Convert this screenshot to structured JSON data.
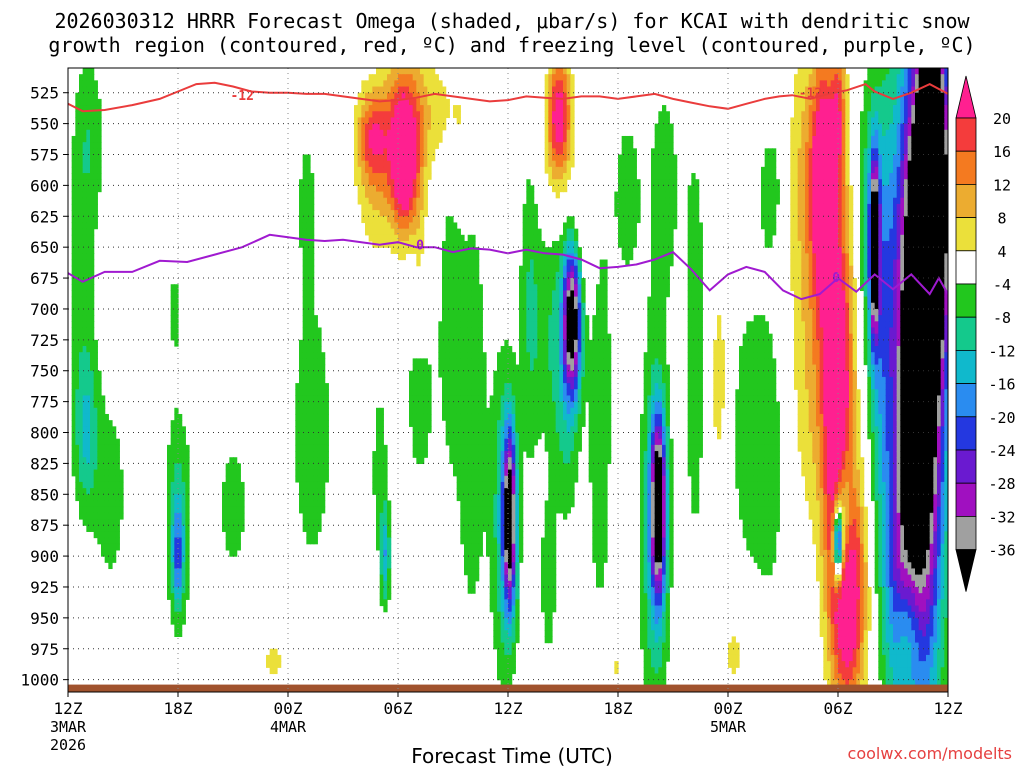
{
  "title_line1": "2026030312 HRRR Forecast Omega (shaded, μbar/s) for KCAI with dendritic snow",
  "title_line2": "growth region (contoured, red, ºC) and freezing level (contoured, purple, ºC)",
  "credit": "coolwx.com/modelts",
  "chart_data": {
    "type": "heatmap",
    "title": "2026030312 HRRR Forecast Omega (shaded, μbar/s) for KCAI with dendritic snow growth region (contoured, red, ºC) and freezing level (contoured, purple, ºC)",
    "xlabel": "Forecast Time (UTC)",
    "ylabel": "",
    "x_range_hours": [
      0,
      48
    ],
    "y_range_mb": [
      505,
      1010
    ],
    "y_scale": "linear, inverted",
    "grid": true,
    "x_ticks": [
      {
        "hour": 0,
        "label": "12Z",
        "sub1": "3MAR",
        "sub2": "2026"
      },
      {
        "hour": 6,
        "label": "18Z",
        "sub1": "",
        "sub2": ""
      },
      {
        "hour": 12,
        "label": "00Z",
        "sub1": "4MAR",
        "sub2": ""
      },
      {
        "hour": 18,
        "label": "06Z",
        "sub1": "",
        "sub2": ""
      },
      {
        "hour": 24,
        "label": "12Z",
        "sub1": "",
        "sub2": ""
      },
      {
        "hour": 30,
        "label": "18Z",
        "sub1": "",
        "sub2": ""
      },
      {
        "hour": 36,
        "label": "00Z",
        "sub1": "5MAR",
        "sub2": ""
      },
      {
        "hour": 42,
        "label": "06Z",
        "sub1": "",
        "sub2": ""
      },
      {
        "hour": 48,
        "label": "12Z",
        "sub1": "",
        "sub2": ""
      }
    ],
    "y_ticks": [
      525,
      550,
      575,
      600,
      625,
      650,
      675,
      700,
      725,
      750,
      775,
      800,
      825,
      850,
      875,
      900,
      925,
      950,
      975,
      1000
    ],
    "colorbar": {
      "labels": [
        "20",
        "16",
        "12",
        "8",
        "4",
        "-4",
        "-8",
        "-12",
        "-16",
        "-20",
        "-24",
        "-28",
        "-32",
        "-36"
      ],
      "bins": [
        {
          "lo": 20,
          "hi": 999,
          "color": "#ff2090"
        },
        {
          "lo": 16,
          "hi": 20,
          "color": "#f43c3c"
        },
        {
          "lo": 12,
          "hi": 16,
          "color": "#f47a20"
        },
        {
          "lo": 8,
          "hi": 12,
          "color": "#ecac30"
        },
        {
          "lo": 4,
          "hi": 8,
          "color": "#ebe03a"
        },
        {
          "lo": -4,
          "hi": 4,
          "color": "#ffffff"
        },
        {
          "lo": -8,
          "hi": -4,
          "color": "#22c71e"
        },
        {
          "lo": -12,
          "hi": -8,
          "color": "#14c98c"
        },
        {
          "lo": -16,
          "hi": -12,
          "color": "#10b9cc"
        },
        {
          "lo": -20,
          "hi": -16,
          "color": "#2a8cf0"
        },
        {
          "lo": -24,
          "hi": -20,
          "color": "#2438e0"
        },
        {
          "lo": -28,
          "hi": -24,
          "color": "#6a1ad0"
        },
        {
          "lo": -32,
          "hi": -28,
          "color": "#a010c0"
        },
        {
          "lo": -36,
          "hi": -32,
          "color": "#a0a0a0"
        },
        {
          "lo": -999,
          "hi": -36,
          "color": "#000000"
        }
      ]
    },
    "omega_features": [
      {
        "t": 0.7,
        "p": 690,
        "ht": 0.9,
        "hp": 150,
        "v": -6
      },
      {
        "t": 1.2,
        "p": 560,
        "ht": 0.8,
        "hp": 70,
        "v": -6
      },
      {
        "t": 1.0,
        "p": 800,
        "ht": 0.6,
        "hp": 60,
        "v": -10
      },
      {
        "t": 2.3,
        "p": 850,
        "ht": 1.0,
        "hp": 90,
        "v": -6
      },
      {
        "t": 6.0,
        "p": 870,
        "ht": 0.7,
        "hp": 90,
        "v": -10
      },
      {
        "t": 6.0,
        "p": 900,
        "ht": 0.3,
        "hp": 40,
        "v": -14
      },
      {
        "t": 5.8,
        "p": 700,
        "ht": 0.3,
        "hp": 50,
        "v": -5
      },
      {
        "t": 9.0,
        "p": 860,
        "ht": 0.9,
        "hp": 60,
        "v": -6
      },
      {
        "t": 11.2,
        "p": 985,
        "ht": 0.6,
        "hp": 18,
        "v": 6
      },
      {
        "t": 12.0,
        "p": 920,
        "ht": 0.2,
        "hp": 30,
        "v": 5
      },
      {
        "t": 13.3,
        "p": 800,
        "ht": 1.2,
        "hp": 120,
        "v": -7
      },
      {
        "t": 13.0,
        "p": 610,
        "ht": 0.6,
        "hp": 70,
        "v": -5
      },
      {
        "t": 16.8,
        "p": 590,
        "ht": 1.1,
        "hp": 70,
        "v": 8
      },
      {
        "t": 16.6,
        "p": 560,
        "ht": 0.8,
        "hp": 35,
        "v": 14
      },
      {
        "t": 18.2,
        "p": 565,
        "ht": 0.9,
        "hp": 60,
        "v": 20
      },
      {
        "t": 18.4,
        "p": 590,
        "ht": 0.6,
        "hp": 50,
        "v": 15
      },
      {
        "t": 17.0,
        "p": 830,
        "ht": 0.5,
        "hp": 80,
        "v": -6
      },
      {
        "t": 17.3,
        "p": 900,
        "ht": 0.25,
        "hp": 40,
        "v": -14
      },
      {
        "t": 19.4,
        "p": 540,
        "ht": 1.3,
        "hp": 50,
        "v": 7
      },
      {
        "t": 19.2,
        "p": 640,
        "ht": 0.4,
        "hp": 90,
        "v": 5
      },
      {
        "t": 20.8,
        "p": 700,
        "ht": 0.6,
        "hp": 130,
        "v": -6
      },
      {
        "t": 19.2,
        "p": 770,
        "ht": 0.9,
        "hp": 90,
        "v": -6
      },
      {
        "t": 21.4,
        "p": 550,
        "ht": 1.0,
        "hp": 60,
        "v": 5
      },
      {
        "t": 22.0,
        "p": 780,
        "ht": 0.9,
        "hp": 200,
        "v": -7
      },
      {
        "t": 23.8,
        "p": 870,
        "ht": 0.7,
        "hp": 130,
        "v": -12
      },
      {
        "t": 24.1,
        "p": 870,
        "ht": 0.35,
        "hp": 70,
        "v": -38
      },
      {
        "t": 25.2,
        "p": 700,
        "ht": 0.6,
        "hp": 130,
        "v": -8
      },
      {
        "t": 26.2,
        "p": 920,
        "ht": 0.4,
        "hp": 60,
        "v": -8
      },
      {
        "t": 26.6,
        "p": 580,
        "ht": 0.9,
        "hp": 50,
        "v": 6
      },
      {
        "t": 26.8,
        "p": 540,
        "ht": 0.6,
        "hp": 45,
        "v": 22
      },
      {
        "t": 26.5,
        "p": 720,
        "ht": 0.9,
        "hp": 100,
        "v": -8
      },
      {
        "t": 27.5,
        "p": 710,
        "ht": 0.5,
        "hp": 60,
        "v": -42
      },
      {
        "t": 27.2,
        "p": 810,
        "ht": 0.7,
        "hp": 80,
        "v": -6
      },
      {
        "t": 28.2,
        "p": 640,
        "ht": 0.7,
        "hp": 60,
        "v": 6
      },
      {
        "t": 29.0,
        "p": 780,
        "ht": 0.7,
        "hp": 200,
        "v": -7
      },
      {
        "t": 29.8,
        "p": 990,
        "ht": 0.6,
        "hp": 20,
        "v": 5
      },
      {
        "t": 30.5,
        "p": 610,
        "ht": 0.8,
        "hp": 80,
        "v": -6
      },
      {
        "t": 32.0,
        "p": 880,
        "ht": 0.8,
        "hp": 160,
        "v": -12
      },
      {
        "t": 32.2,
        "p": 860,
        "ht": 0.4,
        "hp": 70,
        "v": -40
      },
      {
        "t": 32.5,
        "p": 600,
        "ht": 0.9,
        "hp": 100,
        "v": -6
      },
      {
        "t": 34.2,
        "p": 730,
        "ht": 0.7,
        "hp": 220,
        "v": -6
      },
      {
        "t": 34.5,
        "p": 540,
        "ht": 0.5,
        "hp": 30,
        "v": 6
      },
      {
        "t": 35.5,
        "p": 760,
        "ht": 0.6,
        "hp": 100,
        "v": 6
      },
      {
        "t": 36.3,
        "p": 980,
        "ht": 0.5,
        "hp": 25,
        "v": 6
      },
      {
        "t": 37.0,
        "p": 800,
        "ht": 1.0,
        "hp": 120,
        "v": -6
      },
      {
        "t": 38.3,
        "p": 820,
        "ht": 0.9,
        "hp": 130,
        "v": -6
      },
      {
        "t": 38.5,
        "p": 600,
        "ht": 1.0,
        "hp": 70,
        "v": -6
      },
      {
        "t": 40.5,
        "p": 590,
        "ht": 1.4,
        "hp": 110,
        "v": 10
      },
      {
        "t": 40.8,
        "p": 760,
        "ht": 1.3,
        "hp": 120,
        "v": 8
      },
      {
        "t": 41.2,
        "p": 600,
        "ht": 0.6,
        "hp": 90,
        "v": 24
      },
      {
        "t": 42.0,
        "p": 780,
        "ht": 0.8,
        "hp": 160,
        "v": 28
      },
      {
        "t": 42.6,
        "p": 930,
        "ht": 0.9,
        "hp": 90,
        "v": 26
      },
      {
        "t": 42.0,
        "p": 540,
        "ht": 0.4,
        "hp": 60,
        "v": 14
      },
      {
        "t": 42.3,
        "p": 870,
        "ht": 0.5,
        "hp": 60,
        "v": -22
      },
      {
        "t": 42.0,
        "p": 890,
        "ht": 0.25,
        "hp": 30,
        "v": -40
      },
      {
        "t": 43.6,
        "p": 620,
        "ht": 0.6,
        "hp": 110,
        "v": -8
      },
      {
        "t": 44.4,
        "p": 700,
        "ht": 0.7,
        "hp": 180,
        "v": -14
      },
      {
        "t": 44.0,
        "p": 650,
        "ht": 0.25,
        "hp": 70,
        "v": -40
      },
      {
        "t": 45.2,
        "p": 930,
        "ht": 0.8,
        "hp": 100,
        "v": -12
      },
      {
        "t": 46.4,
        "p": 750,
        "ht": 1.3,
        "hp": 240,
        "v": -60
      },
      {
        "t": 47.2,
        "p": 600,
        "ht": 0.8,
        "hp": 120,
        "v": -60
      },
      {
        "t": 45.8,
        "p": 960,
        "ht": 0.7,
        "hp": 50,
        "v": 12
      }
    ],
    "dendritic_neg12_line": {
      "label": "-12",
      "color": "#ea3c3c",
      "points": [
        [
          0,
          534
        ],
        [
          0.8,
          540
        ],
        [
          2,
          539
        ],
        [
          3.5,
          535
        ],
        [
          5,
          530
        ],
        [
          6,
          524
        ],
        [
          7,
          518
        ],
        [
          8,
          517
        ],
        [
          9,
          520
        ],
        [
          10,
          524
        ],
        [
          11,
          525
        ],
        [
          12,
          525
        ],
        [
          13,
          526
        ],
        [
          14,
          526
        ],
        [
          15,
          528
        ],
        [
          16,
          530
        ],
        [
          17,
          532
        ],
        [
          18,
          531
        ],
        [
          19,
          529
        ],
        [
          20,
          526
        ],
        [
          21,
          528
        ],
        [
          22,
          530
        ],
        [
          23,
          532
        ],
        [
          24,
          531
        ],
        [
          25,
          528
        ],
        [
          26,
          529
        ],
        [
          27,
          530
        ],
        [
          28,
          528
        ],
        [
          29,
          528
        ],
        [
          30,
          530
        ],
        [
          31,
          528
        ],
        [
          32,
          526
        ],
        [
          33,
          530
        ],
        [
          34,
          533
        ],
        [
          35,
          536
        ],
        [
          36,
          538
        ],
        [
          37,
          534
        ],
        [
          38,
          530
        ],
        [
          38.8,
          528
        ],
        [
          39.5,
          527
        ],
        [
          40.5,
          530
        ],
        [
          41.5,
          526
        ],
        [
          42.5,
          523
        ],
        [
          43.5,
          518
        ],
        [
          44,
          524
        ],
        [
          45,
          530
        ],
        [
          46,
          525
        ],
        [
          47,
          518
        ],
        [
          48,
          526
        ]
      ],
      "labels_at": [
        [
          9.5,
          527
        ],
        [
          40.5,
          525
        ]
      ]
    },
    "freezing_zero_line": {
      "label": "0",
      "color": "#a01ad0",
      "points": [
        [
          0,
          671
        ],
        [
          0.8,
          678
        ],
        [
          2,
          670
        ],
        [
          3.5,
          670
        ],
        [
          5,
          661
        ],
        [
          6.5,
          662
        ],
        [
          8,
          656
        ],
        [
          9.5,
          650
        ],
        [
          11,
          640
        ],
        [
          12,
          642
        ],
        [
          13,
          644
        ],
        [
          14,
          645
        ],
        [
          15,
          644
        ],
        [
          16,
          646
        ],
        [
          17,
          648
        ],
        [
          18,
          646
        ],
        [
          19,
          650
        ],
        [
          20,
          650
        ],
        [
          21,
          654
        ],
        [
          22,
          651
        ],
        [
          23,
          652
        ],
        [
          24,
          655
        ],
        [
          25,
          652
        ],
        [
          26,
          655
        ],
        [
          27,
          656
        ],
        [
          28,
          660
        ],
        [
          29,
          667
        ],
        [
          30,
          666
        ],
        [
          31,
          664
        ],
        [
          32,
          660
        ],
        [
          33,
          654
        ],
        [
          34,
          668
        ],
        [
          35,
          685
        ],
        [
          36,
          672
        ],
        [
          37,
          666
        ],
        [
          38,
          670
        ],
        [
          39,
          685
        ],
        [
          40,
          692
        ],
        [
          41,
          688
        ],
        [
          42,
          675
        ],
        [
          43,
          686
        ],
        [
          44,
          672
        ],
        [
          45,
          684
        ],
        [
          46,
          672
        ],
        [
          47,
          688
        ],
        [
          47.5,
          675
        ],
        [
          48,
          688
        ]
      ],
      "labels_at": [
        [
          19.2,
          648
        ],
        [
          41.9,
          674
        ]
      ]
    },
    "ground": {
      "p_top": 1004,
      "color": "#a0522d"
    }
  }
}
